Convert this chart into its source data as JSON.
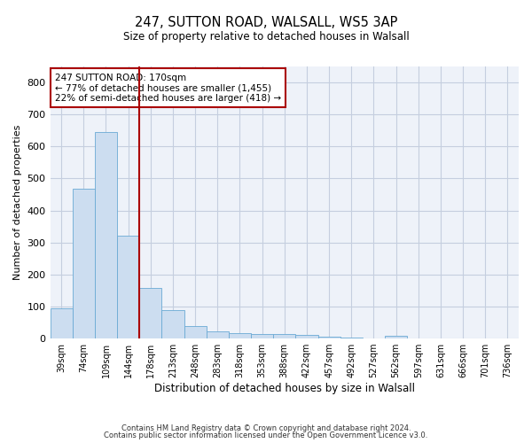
{
  "title1": "247, SUTTON ROAD, WALSALL, WS5 3AP",
  "title2": "Size of property relative to detached houses in Walsall",
  "xlabel": "Distribution of detached houses by size in Walsall",
  "ylabel": "Number of detached properties",
  "bar_color": "#ccddf0",
  "bar_edge_color": "#6aaad4",
  "vline_color": "#aa0000",
  "annotation_text": "247 SUTTON ROAD: 170sqm\n← 77% of detached houses are smaller (1,455)\n22% of semi-detached houses are larger (418) →",
  "annotation_box_color": "white",
  "annotation_box_edge": "#aa0000",
  "categories": [
    "39sqm",
    "74sqm",
    "109sqm",
    "144sqm",
    "178sqm",
    "213sqm",
    "248sqm",
    "283sqm",
    "318sqm",
    "353sqm",
    "388sqm",
    "422sqm",
    "457sqm",
    "492sqm",
    "527sqm",
    "562sqm",
    "597sqm",
    "631sqm",
    "666sqm",
    "701sqm",
    "736sqm"
  ],
  "values": [
    93,
    468,
    645,
    322,
    157,
    90,
    38,
    23,
    18,
    14,
    14,
    11,
    7,
    4,
    0,
    8,
    0,
    0,
    0,
    0,
    0
  ],
  "ylim": [
    0,
    850
  ],
  "yticks": [
    0,
    100,
    200,
    300,
    400,
    500,
    600,
    700,
    800
  ],
  "footnote1": "Contains HM Land Registry data © Crown copyright and database right 2024.",
  "footnote2": "Contains public sector information licensed under the Open Government Licence v3.0.",
  "bg_color": "#eef2f9",
  "grid_color": "#c5cedf"
}
